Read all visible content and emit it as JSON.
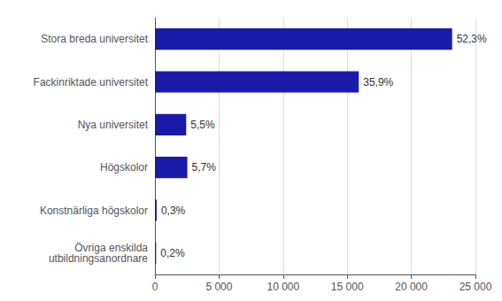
{
  "chart_data": {
    "type": "bar",
    "orientation": "horizontal",
    "categories": [
      "Övriga enskilda\nutbildningsanordnare",
      "Konstnärliga högskolor",
      "Högskolor",
      "Nya universitet",
      "Fackinriktade universitet",
      "Stora breda universitet"
    ],
    "values": [
      90,
      133,
      2527,
      2438,
      15900,
      23180
    ],
    "shares": [
      0.2,
      0.3,
      5.7,
      5.5,
      35.9,
      52.3
    ],
    "share_labels": [
      "0,2%",
      "0,3%",
      "5,7%",
      "5,5%",
      "35,9%",
      "52,3%"
    ],
    "color": "#1a1aaa",
    "xlim": [
      0,
      25000
    ],
    "xticks": [
      0,
      {
        "value": 5000,
        "label": "5 000"
      },
      {
        "value": 10000,
        "label": "10 000"
      },
      {
        "value": 15000,
        "label": "15 000"
      },
      {
        "value": 20000,
        "label": "20 000"
      },
      {
        "value": 25000,
        "label": "25 000"
      }
    ],
    "grid": true
  }
}
